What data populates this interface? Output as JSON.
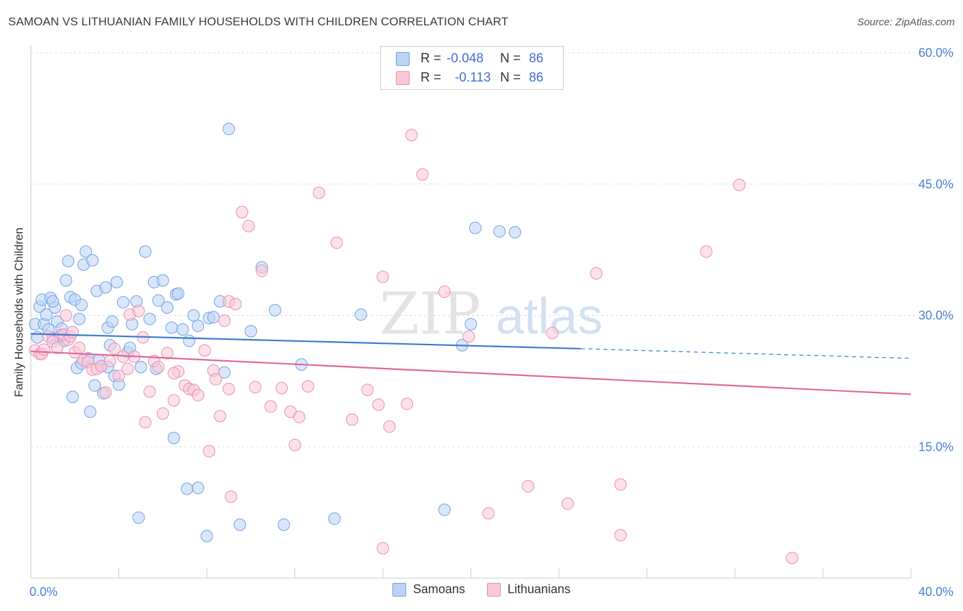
{
  "title": "SAMOAN VS LITHUANIAN FAMILY HOUSEHOLDS WITH CHILDREN CORRELATION CHART",
  "source": "Source: ZipAtlas.com",
  "watermark": {
    "zip": "ZIP",
    "atlas": "atlas"
  },
  "legend": {
    "rows": [
      {
        "r_label": "R =",
        "r_value": "-0.048",
        "n_label": "N =",
        "n_value": "86",
        "color": "#6fa0e0",
        "fill": "#bcd3f5"
      },
      {
        "r_label": "R =",
        "r_value": "-0.113",
        "n_label": "N =",
        "n_value": "86",
        "color": "#e88fb0",
        "fill": "#f9c9d8"
      }
    ]
  },
  "bottom_legend": [
    {
      "label": "Samoans",
      "fill": "#bcd3f5",
      "color": "#6fa0e0"
    },
    {
      "label": "Lithuanians",
      "fill": "#f9c9d8",
      "color": "#e88fb0"
    }
  ],
  "chart_data": {
    "type": "scatter",
    "title": "SAMOAN VS LITHUANIAN FAMILY HOUSEHOLDS WITH CHILDREN CORRELATION CHART",
    "xlabel": "",
    "ylabel": "Family Households with Children",
    "xlim": [
      0,
      40
    ],
    "ylim": [
      0,
      60
    ],
    "x_tick_labels": [
      {
        "value": 0,
        "label": "0.0%"
      },
      {
        "value": 40,
        "label": "40.0%"
      }
    ],
    "y_tick_labels": [
      {
        "value": 15,
        "label": "15.0%"
      },
      {
        "value": 30,
        "label": "30.0%"
      },
      {
        "value": 45,
        "label": "45.0%"
      },
      {
        "value": 60,
        "label": "60.0%"
      }
    ],
    "grid": "horizontal dashed",
    "series": [
      {
        "name": "Samoans",
        "color": "#3a78d4",
        "fill": "#bcd3f5",
        "trend": {
          "x0": 0,
          "y0": 27.9,
          "x1": 25,
          "y1": 26.2,
          "dashed_to_x": 40,
          "dashed_to_y": 25.1
        },
        "points": [
          [
            0.2,
            29.0
          ],
          [
            0.4,
            31.0
          ],
          [
            0.5,
            31.8
          ],
          [
            0.6,
            29.0
          ],
          [
            0.7,
            30.1
          ],
          [
            0.8,
            28.4
          ],
          [
            0.9,
            32.0
          ],
          [
            1.0,
            27.4
          ],
          [
            1.1,
            30.9
          ],
          [
            1.2,
            29.3
          ],
          [
            1.3,
            27.6
          ],
          [
            1.4,
            28.5
          ],
          [
            1.5,
            27.1
          ],
          [
            1.6,
            34.0
          ],
          [
            1.7,
            36.2
          ],
          [
            1.8,
            32.1
          ],
          [
            1.9,
            20.7
          ],
          [
            2.0,
            31.8
          ],
          [
            2.1,
            24.0
          ],
          [
            2.2,
            29.6
          ],
          [
            2.3,
            31.2
          ],
          [
            2.4,
            35.8
          ],
          [
            2.5,
            37.3
          ],
          [
            2.6,
            25.1
          ],
          [
            2.7,
            19.0
          ],
          [
            2.8,
            36.3
          ],
          [
            2.9,
            22.0
          ],
          [
            3.0,
            32.8
          ],
          [
            3.1,
            24.9
          ],
          [
            3.2,
            24.2
          ],
          [
            3.3,
            21.1
          ],
          [
            3.4,
            33.2
          ],
          [
            3.5,
            28.6
          ],
          [
            3.6,
            26.6
          ],
          [
            3.7,
            29.3
          ],
          [
            3.8,
            23.1
          ],
          [
            3.9,
            33.8
          ],
          [
            4.0,
            22.1
          ],
          [
            4.2,
            31.5
          ],
          [
            4.4,
            25.8
          ],
          [
            4.5,
            26.3
          ],
          [
            4.6,
            29.0
          ],
          [
            4.8,
            31.6
          ],
          [
            5.0,
            24.1
          ],
          [
            5.2,
            37.3
          ],
          [
            5.4,
            29.6
          ],
          [
            5.6,
            33.8
          ],
          [
            5.7,
            23.9
          ],
          [
            5.8,
            31.7
          ],
          [
            6.0,
            34.0
          ],
          [
            6.2,
            30.9
          ],
          [
            6.4,
            28.6
          ],
          [
            6.5,
            16.0
          ],
          [
            6.6,
            32.4
          ],
          [
            6.7,
            32.5
          ],
          [
            6.9,
            28.4
          ],
          [
            7.2,
            27.1
          ],
          [
            7.4,
            30.0
          ],
          [
            7.6,
            28.8
          ],
          [
            8.1,
            29.7
          ],
          [
            8.3,
            29.8
          ],
          [
            8.6,
            31.6
          ],
          [
            8.8,
            23.5
          ],
          [
            9.0,
            51.3
          ],
          [
            10.0,
            28.2
          ],
          [
            10.5,
            35.5
          ],
          [
            11.1,
            30.6
          ],
          [
            12.3,
            24.4
          ],
          [
            15.0,
            30.1
          ],
          [
            19.6,
            26.6
          ],
          [
            20.0,
            29.0
          ],
          [
            20.2,
            40.0
          ],
          [
            21.3,
            39.6
          ],
          [
            22.0,
            39.5
          ],
          [
            4.9,
            6.9
          ],
          [
            7.1,
            10.2
          ],
          [
            7.6,
            10.3
          ],
          [
            8.0,
            4.8
          ],
          [
            9.5,
            6.1
          ],
          [
            11.5,
            6.1
          ],
          [
            13.8,
            6.8
          ],
          [
            18.8,
            7.8
          ],
          [
            0.3,
            27.5
          ],
          [
            1.0,
            31.6
          ],
          [
            2.3,
            24.5
          ],
          [
            3.5,
            24.1
          ]
        ]
      },
      {
        "name": "Lithuanians",
        "color": "#e0669a",
        "fill": "#f9c9d8",
        "trend": {
          "x0": 0,
          "y0": 25.9,
          "x1": 40,
          "y1": 21.0
        },
        "points": [
          [
            0.2,
            26.0
          ],
          [
            0.4,
            25.6
          ],
          [
            0.5,
            25.6
          ],
          [
            0.6,
            26.1
          ],
          [
            0.8,
            27.6
          ],
          [
            1.0,
            27.0
          ],
          [
            1.2,
            26.3
          ],
          [
            1.4,
            27.8
          ],
          [
            1.5,
            27.8
          ],
          [
            1.6,
            30.0
          ],
          [
            1.7,
            27.2
          ],
          [
            1.8,
            27.6
          ],
          [
            1.9,
            28.1
          ],
          [
            2.0,
            25.8
          ],
          [
            2.2,
            26.3
          ],
          [
            2.4,
            24.9
          ],
          [
            2.6,
            24.7
          ],
          [
            2.8,
            23.8
          ],
          [
            3.0,
            23.9
          ],
          [
            3.2,
            24.2
          ],
          [
            3.4,
            21.2
          ],
          [
            3.6,
            24.8
          ],
          [
            3.8,
            26.2
          ],
          [
            4.0,
            23.1
          ],
          [
            4.2,
            25.3
          ],
          [
            4.4,
            23.9
          ],
          [
            4.5,
            30.1
          ],
          [
            4.7,
            25.3
          ],
          [
            4.9,
            30.5
          ],
          [
            5.1,
            27.5
          ],
          [
            5.2,
            17.8
          ],
          [
            5.4,
            21.3
          ],
          [
            5.6,
            24.8
          ],
          [
            5.8,
            24.1
          ],
          [
            6.0,
            18.8
          ],
          [
            6.2,
            25.7
          ],
          [
            6.5,
            20.3
          ],
          [
            6.7,
            23.6
          ],
          [
            7.0,
            22.0
          ],
          [
            7.2,
            21.6
          ],
          [
            7.4,
            21.5
          ],
          [
            7.6,
            20.9
          ],
          [
            7.9,
            26.0
          ],
          [
            8.1,
            14.5
          ],
          [
            8.3,
            23.7
          ],
          [
            8.6,
            18.5
          ],
          [
            8.8,
            29.4
          ],
          [
            9.0,
            31.6
          ],
          [
            9.3,
            31.3
          ],
          [
            9.6,
            41.8
          ],
          [
            9.9,
            40.2
          ],
          [
            10.2,
            21.8
          ],
          [
            10.5,
            35.1
          ],
          [
            10.9,
            19.6
          ],
          [
            11.4,
            21.7
          ],
          [
            11.8,
            19.0
          ],
          [
            12.0,
            15.2
          ],
          [
            12.2,
            18.4
          ],
          [
            12.6,
            21.9
          ],
          [
            13.1,
            44.0
          ],
          [
            13.9,
            38.3
          ],
          [
            14.6,
            18.1
          ],
          [
            15.3,
            21.5
          ],
          [
            15.8,
            19.8
          ],
          [
            16.0,
            34.4
          ],
          [
            16.3,
            17.3
          ],
          [
            17.1,
            19.9
          ],
          [
            17.3,
            50.6
          ],
          [
            17.8,
            46.1
          ],
          [
            18.8,
            32.7
          ],
          [
            19.9,
            27.6
          ],
          [
            20.8,
            7.4
          ],
          [
            22.6,
            10.5
          ],
          [
            23.7,
            28.0
          ],
          [
            24.4,
            8.5
          ],
          [
            25.7,
            34.8
          ],
          [
            26.8,
            10.7
          ],
          [
            26.8,
            4.9
          ],
          [
            30.7,
            37.3
          ],
          [
            32.2,
            44.9
          ],
          [
            34.6,
            2.3
          ],
          [
            16.0,
            3.4
          ],
          [
            9.1,
            9.3
          ],
          [
            6.5,
            23.4
          ],
          [
            9.0,
            21.6
          ],
          [
            8.4,
            22.7
          ]
        ]
      }
    ]
  }
}
